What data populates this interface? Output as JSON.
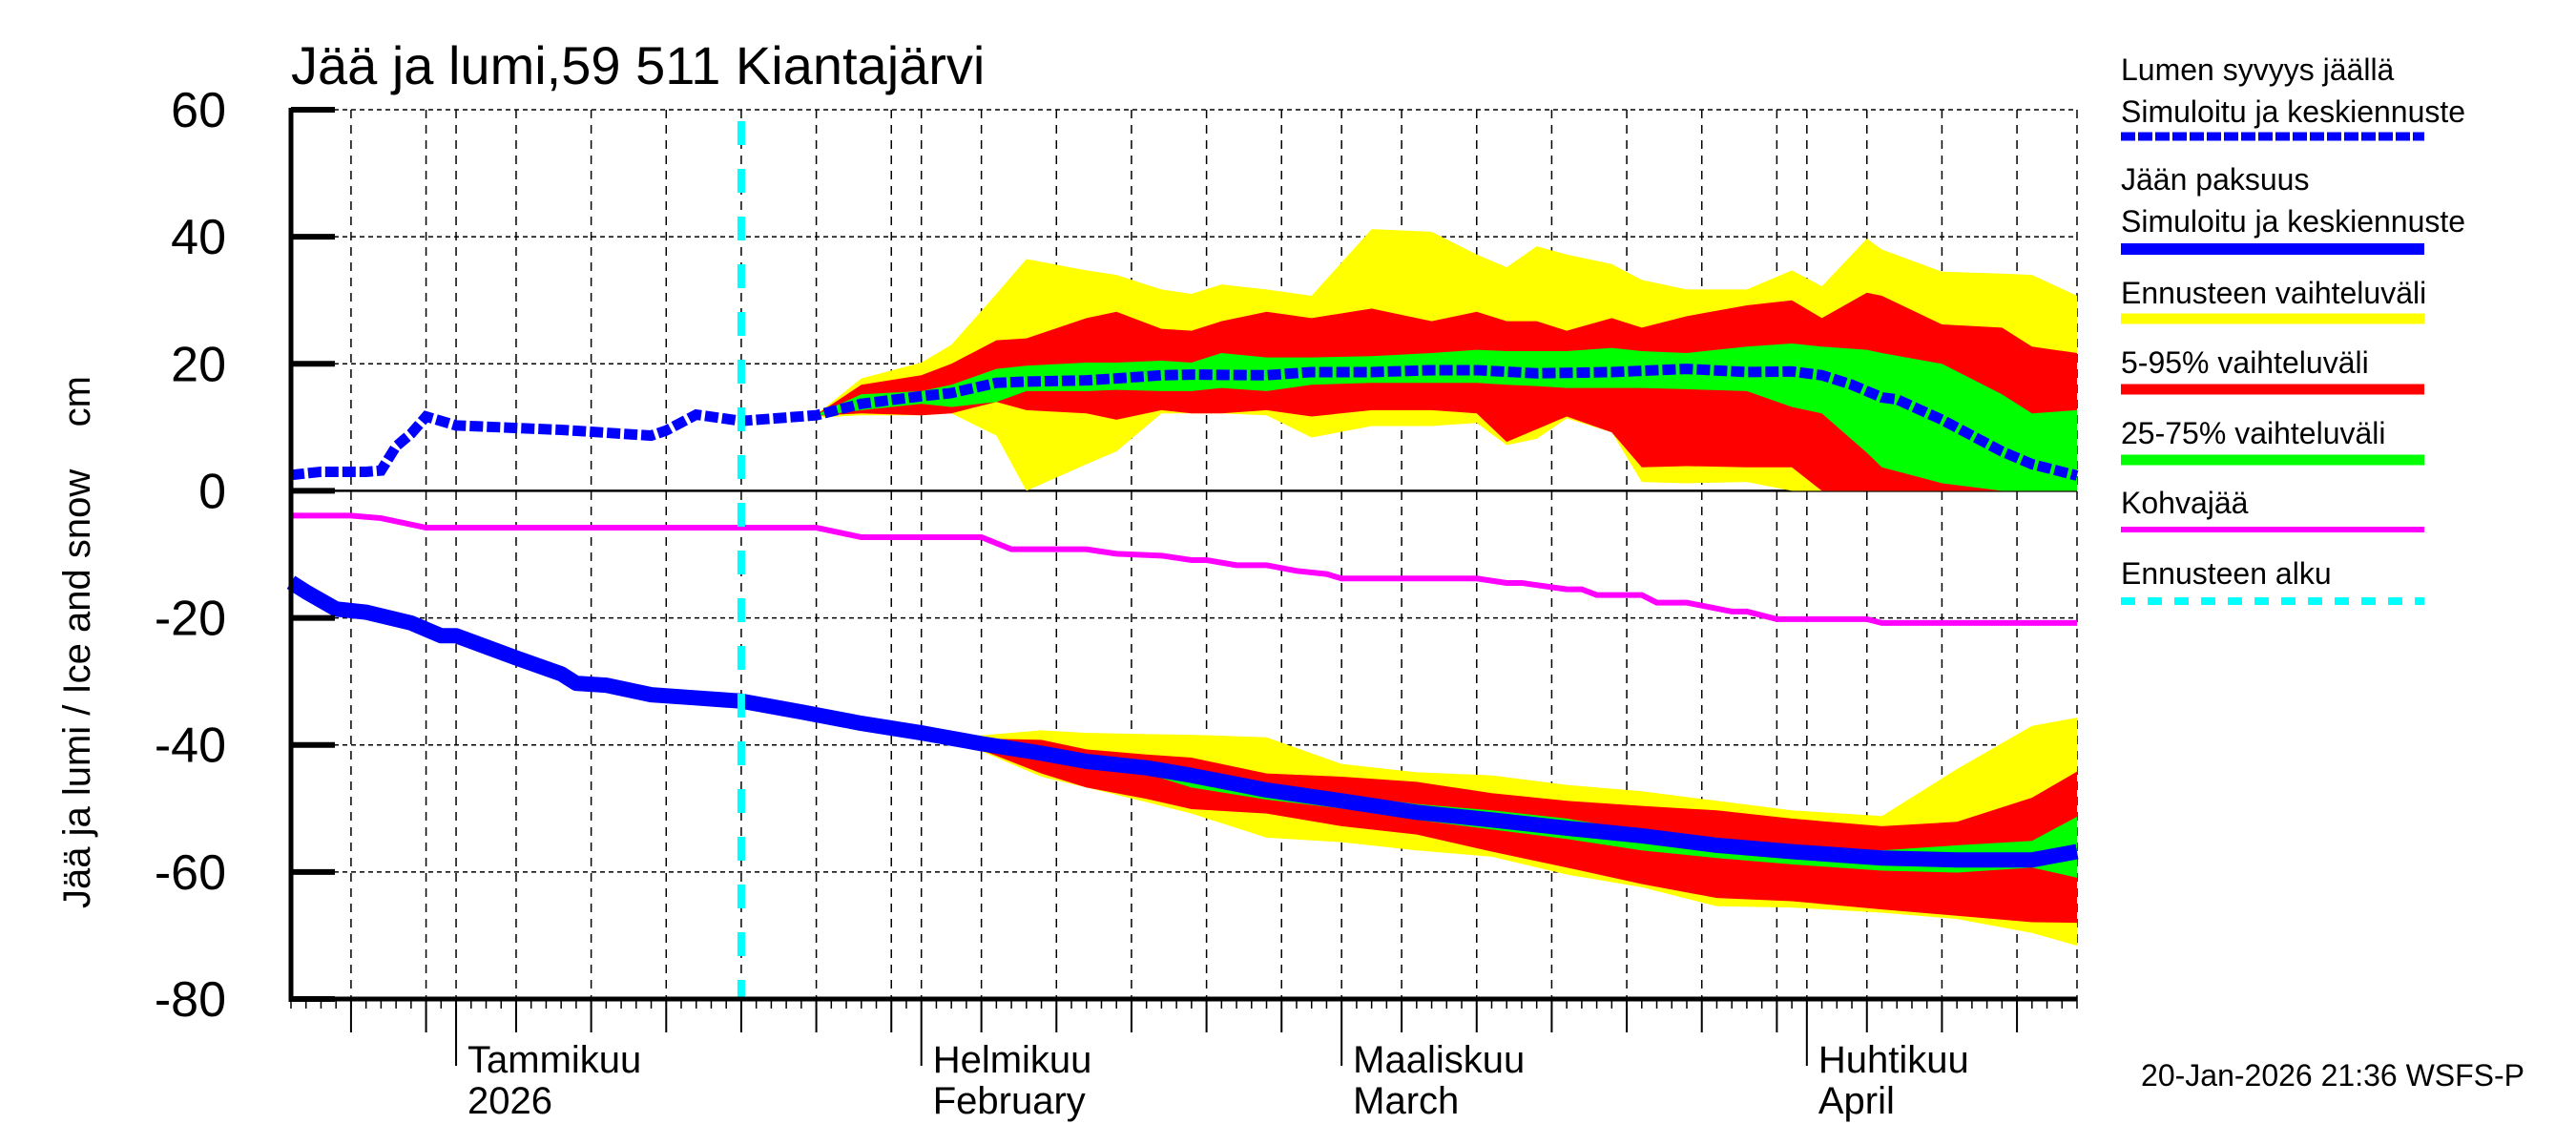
{
  "chart_data": {
    "type": "area",
    "title": "Jää ja lumi,59 511 Kiantajärvi",
    "ylabel": "Jää ja lumi / Ice and snow    cm",
    "ylim": [
      -80,
      60
    ],
    "yticks": [
      60,
      40,
      20,
      0,
      -20,
      -40,
      -60,
      -80
    ],
    "xlim": [
      "2025-12-21",
      "2026-04-19"
    ],
    "grid": true,
    "legend_placement": "right",
    "forecast_start": "2026-01-20",
    "month_labels": [
      {
        "date": "2026-01-01",
        "line1": "Tammikuu",
        "line2": "2026"
      },
      {
        "date": "2026-02-01",
        "line1": "Helmikuu",
        "line2": "February"
      },
      {
        "date": "2026-03-01",
        "line1": "Maaliskuu",
        "line2": "March"
      },
      {
        "date": "2026-04-01",
        "line1": "Huhtikuu",
        "line2": "April"
      }
    ],
    "colors": {
      "snow": "#0000ff",
      "ice": "#0000ff",
      "range": "#ffff00",
      "p5_95": "#ff0000",
      "p25_75": "#00ff00",
      "kohva": "#ff00ff",
      "forecast_start": "#00ffff"
    },
    "snow_depth": [
      [
        "2025-12-21",
        2.5
      ],
      [
        "2025-12-23",
        3
      ],
      [
        "2025-12-26",
        3
      ],
      [
        "2025-12-27",
        3.2
      ],
      [
        "2025-12-28",
        7
      ],
      [
        "2025-12-29",
        9
      ],
      [
        "2025-12-30",
        11.7
      ],
      [
        "2026-01-01",
        10.3
      ],
      [
        "2026-01-08",
        9.6
      ],
      [
        "2026-01-14",
        8.7
      ],
      [
        "2026-01-15",
        9.5
      ],
      [
        "2026-01-17",
        12
      ],
      [
        "2026-01-20",
        11
      ],
      [
        "2026-01-25",
        11.9
      ],
      [
        "2026-01-28",
        13.7
      ],
      [
        "2026-02-01",
        14.9
      ],
      [
        "2026-02-03",
        15.4
      ],
      [
        "2026-02-06",
        17
      ],
      [
        "2026-02-08",
        17.2
      ],
      [
        "2026-02-12",
        17.4
      ],
      [
        "2026-02-14",
        17.7
      ],
      [
        "2026-02-17",
        18.2
      ],
      [
        "2026-02-19",
        18.3
      ],
      [
        "2026-02-24",
        18.2
      ],
      [
        "2026-02-27",
        18.7
      ],
      [
        "2026-03-03",
        18.7
      ],
      [
        "2026-03-07",
        19
      ],
      [
        "2026-03-10",
        19
      ],
      [
        "2026-03-14",
        18.5
      ],
      [
        "2026-03-19",
        18.7
      ],
      [
        "2026-03-24",
        19.2
      ],
      [
        "2026-03-28",
        18.7
      ],
      [
        "2026-03-31",
        18.8
      ],
      [
        "2026-04-02",
        18.2
      ],
      [
        "2026-04-04",
        16.7
      ],
      [
        "2026-04-06",
        14.7
      ],
      [
        "2026-04-07",
        14.4
      ],
      [
        "2026-04-10",
        11.2
      ],
      [
        "2026-04-14",
        6.2
      ],
      [
        "2026-04-16",
        4.2
      ],
      [
        "2026-04-19",
        2.4
      ]
    ],
    "snow_bands": {
      "dates": [
        "2026-01-25",
        "2026-01-28",
        "2026-02-01",
        "2026-02-03",
        "2026-02-06",
        "2026-02-08",
        "2026-02-12",
        "2026-02-14",
        "2026-02-17",
        "2026-02-19",
        "2026-02-21",
        "2026-02-24",
        "2026-02-27",
        "2026-03-03",
        "2026-03-07",
        "2026-03-10",
        "2026-03-12",
        "2026-03-14",
        "2026-03-16",
        "2026-03-19",
        "2026-03-21",
        "2026-03-24",
        "2026-03-28",
        "2026-03-31",
        "2026-04-02",
        "2026-04-05",
        "2026-04-06",
        "2026-04-10",
        "2026-04-14",
        "2026-04-16",
        "2026-04-19"
      ],
      "max": [
        12,
        17.7,
        20.2,
        23,
        31,
        36.5,
        34.7,
        34,
        31.7,
        31,
        32.5,
        31.7,
        30.7,
        41.2,
        40.8,
        37.2,
        35.2,
        38.5,
        37.2,
        35.7,
        33.2,
        31.7,
        31.7,
        34.7,
        32.2,
        39.7,
        38,
        34.5,
        34.2,
        34,
        30.7
      ],
      "p95": [
        12,
        16.7,
        18.2,
        20,
        23.7,
        24,
        27.2,
        28.2,
        25.5,
        25.2,
        26.7,
        28.2,
        27.2,
        28.7,
        26.7,
        28.2,
        26.7,
        26.7,
        25.2,
        27.2,
        25.7,
        27.5,
        29.2,
        30,
        27.2,
        31.2,
        30.7,
        26.2,
        25.7,
        22.7,
        21.7
      ],
      "p75": [
        12,
        15.2,
        15.7,
        16.7,
        19.2,
        19.7,
        20.2,
        20.2,
        20.5,
        20.2,
        21.7,
        21,
        21,
        21.2,
        21.7,
        22.2,
        22,
        22,
        22,
        22.5,
        22,
        21.7,
        22.7,
        23.2,
        22.7,
        22.2,
        21.7,
        20,
        15.2,
        12.2,
        12.7
      ],
      "p25": [
        11.8,
        12.7,
        13.7,
        13.2,
        14,
        15.7,
        15.7,
        15.9,
        15.7,
        15.7,
        16.2,
        15.7,
        16.7,
        17,
        17,
        17,
        16.7,
        16.5,
        16.2,
        16.2,
        16.2,
        16,
        15.7,
        13.2,
        12.2,
        6,
        3.7,
        1.2,
        0,
        0,
        0
      ],
      "p5": [
        11.8,
        12.2,
        11.9,
        12.2,
        14,
        12.7,
        12.2,
        11.2,
        12.7,
        12.2,
        12.2,
        12.7,
        11.7,
        12.7,
        12.7,
        12.2,
        7.7,
        9.7,
        11.7,
        9.2,
        3.7,
        3.9,
        3.7,
        3.7,
        0,
        0,
        0,
        0,
        0,
        0,
        0
      ],
      "min": [
        11.5,
        11.9,
        11.9,
        12.2,
        8.7,
        0,
        4.2,
        6.2,
        12.2,
        12.2,
        12.2,
        11.9,
        8.4,
        10.2,
        10.2,
        10.7,
        7.2,
        8.2,
        11.4,
        9.2,
        1.4,
        1.2,
        1.4,
        0,
        0,
        0,
        0,
        0,
        0,
        0,
        0
      ]
    },
    "ice_thickness": [
      [
        "2025-12-21",
        -14.4
      ],
      [
        "2025-12-22",
        -15.9
      ],
      [
        "2025-12-24",
        -18.6
      ],
      [
        "2025-12-26",
        -19.1
      ],
      [
        "2025-12-29",
        -20.8
      ],
      [
        "2025-12-31",
        -22.8
      ],
      [
        "2026-01-01",
        -22.8
      ],
      [
        "2026-01-05",
        -26.3
      ],
      [
        "2026-01-08",
        -28.8
      ],
      [
        "2026-01-09",
        -30.3
      ],
      [
        "2026-01-11",
        -30.6
      ],
      [
        "2026-01-14",
        -32.1
      ],
      [
        "2026-01-17",
        -32.6
      ],
      [
        "2026-01-20",
        -33.1
      ],
      [
        "2026-01-24",
        -34.8
      ],
      [
        "2026-01-28",
        -36.6
      ],
      [
        "2026-02-01",
        -38.1
      ],
      [
        "2026-02-05",
        -39.8
      ],
      [
        "2026-02-09",
        -41.3
      ],
      [
        "2026-02-12",
        -42.6
      ],
      [
        "2026-02-16",
        -43.6
      ],
      [
        "2026-02-19",
        -44.8
      ],
      [
        "2026-02-24",
        -47.1
      ],
      [
        "2026-03-01",
        -48.8
      ],
      [
        "2026-03-06",
        -50.6
      ],
      [
        "2026-03-11",
        -51.8
      ],
      [
        "2026-03-16",
        -53.1
      ],
      [
        "2026-03-21",
        -54.3
      ],
      [
        "2026-03-26",
        -55.8
      ],
      [
        "2026-03-31",
        -56.8
      ],
      [
        "2026-04-06",
        -57.8
      ],
      [
        "2026-04-11",
        -58.1
      ],
      [
        "2026-04-16",
        -58.1
      ],
      [
        "2026-04-19",
        -56.8
      ]
    ],
    "ice_bands": {
      "dates": [
        "2026-02-01",
        "2026-02-05",
        "2026-02-09",
        "2026-02-12",
        "2026-02-16",
        "2026-02-19",
        "2026-02-24",
        "2026-03-01",
        "2026-03-06",
        "2026-03-11",
        "2026-03-16",
        "2026-03-21",
        "2026-03-26",
        "2026-03-31",
        "2026-04-06",
        "2026-04-11",
        "2026-04-16",
        "2026-04-19"
      ],
      "max": [
        -38,
        -38.5,
        -37.7,
        -38.1,
        -38.3,
        -38.4,
        -38.8,
        -43,
        -44.3,
        -44.8,
        -46.3,
        -47.3,
        -48.8,
        -50.3,
        -51.2,
        -43.8,
        -37,
        -35.7
      ],
      "p95": [
        -38,
        -39,
        -39.2,
        -40.7,
        -41.5,
        -42,
        -44.5,
        -45,
        -45.8,
        -47.6,
        -48.8,
        -49.6,
        -50.3,
        -51.6,
        -52.8,
        -52.1,
        -48.3,
        -44.2
      ],
      "p75": [
        -38,
        -39.5,
        -40.5,
        -42,
        -43,
        -44,
        -46.3,
        -47.8,
        -49.3,
        -50.3,
        -51.6,
        -53.6,
        -54.6,
        -55.8,
        -56.6,
        -55.8,
        -55.1,
        -51.3
      ],
      "p25": [
        -38.2,
        -40.2,
        -42,
        -43.3,
        -44.5,
        -46.7,
        -48.6,
        -50,
        -51.8,
        -53.3,
        -54.8,
        -56.6,
        -57.8,
        -58.8,
        -59.8,
        -60.1,
        -59.3,
        -60.9
      ],
      "p5": [
        -38.2,
        -40.8,
        -44.5,
        -46.7,
        -48.5,
        -50.1,
        -50.8,
        -52.8,
        -54.1,
        -56.8,
        -59.3,
        -61.9,
        -64.1,
        -64.6,
        -65.9,
        -66.9,
        -67.9,
        -68
      ],
      "min": [
        -38.2,
        -41,
        -45,
        -46.7,
        -49,
        -50.8,
        -54.6,
        -55.3,
        -56.6,
        -57.6,
        -60.4,
        -62.4,
        -65.4,
        -65.6,
        -66.4,
        -67.4,
        -69.6,
        -71.6
      ]
    },
    "kohvajaa": [
      [
        "2025-12-21",
        -3.9
      ],
      [
        "2025-12-25",
        -3.9
      ],
      [
        "2025-12-27",
        -4.3
      ],
      [
        "2025-12-30",
        -5.8
      ],
      [
        "2026-01-25",
        -5.8
      ],
      [
        "2026-01-28",
        -7.3
      ],
      [
        "2026-02-05",
        -7.3
      ],
      [
        "2026-02-07",
        -9.2
      ],
      [
        "2026-02-12",
        -9.2
      ],
      [
        "2026-02-14",
        -9.9
      ],
      [
        "2026-02-17",
        -10.2
      ],
      [
        "2026-02-19",
        -10.9
      ],
      [
        "2026-02-20",
        -10.9
      ],
      [
        "2026-02-22",
        -11.7
      ],
      [
        "2026-02-24",
        -11.7
      ],
      [
        "2026-02-26",
        -12.6
      ],
      [
        "2026-02-28",
        -13.1
      ],
      [
        "2026-03-01",
        -13.8
      ],
      [
        "2026-03-10",
        -13.8
      ],
      [
        "2026-03-12",
        -14.5
      ],
      [
        "2026-03-13",
        -14.5
      ],
      [
        "2026-03-16",
        -15.5
      ],
      [
        "2026-03-17",
        -15.5
      ],
      [
        "2026-03-18",
        -16.4
      ],
      [
        "2026-03-21",
        -16.4
      ],
      [
        "2026-03-22",
        -17.6
      ],
      [
        "2026-03-24",
        -17.6
      ],
      [
        "2026-03-27",
        -19
      ],
      [
        "2026-03-28",
        -19
      ],
      [
        "2026-03-30",
        -20.2
      ],
      [
        "2026-04-05",
        -20.2
      ],
      [
        "2026-04-06",
        -20.8
      ],
      [
        "2026-04-19",
        -20.8
      ]
    ],
    "legend": [
      {
        "key": "snow",
        "line1": "Lumen syvyys jäällä",
        "line2": "Simuloitu ja keskiennuste",
        "style": "dashed-thick",
        "color": "#0000ff"
      },
      {
        "key": "ice",
        "line1": "Jään paksuus",
        "line2": "Simuloitu ja keskiennuste",
        "style": "solid-thick",
        "color": "#0000ff"
      },
      {
        "key": "range",
        "line1": "Ennusteen vaihteluväli",
        "style": "solid",
        "color": "#ffff00"
      },
      {
        "key": "p5_95",
        "line1": "5-95% vaihteluväli",
        "style": "solid",
        "color": "#ff0000"
      },
      {
        "key": "p25_75",
        "line1": "25-75% vaihteluväli",
        "style": "solid",
        "color": "#00ff00"
      },
      {
        "key": "kohva",
        "line1": "Kohvajää",
        "style": "solid-thin",
        "color": "#ff00ff"
      },
      {
        "key": "forecast_start",
        "line1": "Ennusteen alku",
        "style": "dashed",
        "color": "#00ffff"
      }
    ],
    "timestamp": "20-Jan-2026 21:36 WSFS-P"
  }
}
